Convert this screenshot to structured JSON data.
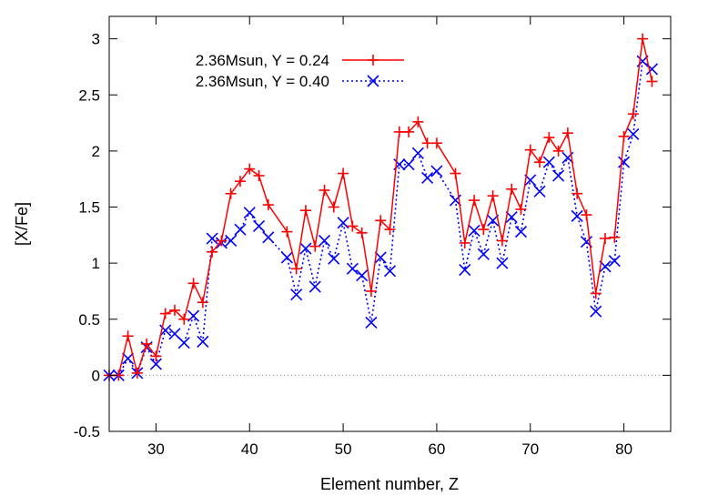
{
  "chart_data": {
    "type": "line",
    "title": "",
    "xlabel": "Element number, Z",
    "ylabel": "[X/Fe]",
    "xlim": [
      25,
      85
    ],
    "ylim": [
      -0.5,
      3.2
    ],
    "x_ticks": [
      30,
      40,
      50,
      60,
      70,
      80
    ],
    "y_ticks": [
      -0.5,
      0,
      0.5,
      1,
      1.5,
      2,
      2.5,
      3
    ],
    "x_tick_labels": [
      "30",
      "40",
      "50",
      "60",
      "70",
      "80"
    ],
    "y_tick_labels": [
      "-0.5",
      "0",
      "0.5",
      "1",
      "1.5",
      "2",
      "2.5",
      "3"
    ],
    "grid": false,
    "zero_line": true,
    "legend_position": "top-left",
    "x": [
      25,
      26,
      27,
      28,
      29,
      30,
      31,
      32,
      33,
      34,
      35,
      36,
      37,
      38,
      39,
      40,
      41,
      42,
      44,
      45,
      46,
      47,
      48,
      49,
      50,
      51,
      52,
      53,
      54,
      55,
      56,
      57,
      58,
      59,
      60,
      62,
      63,
      64,
      65,
      66,
      67,
      68,
      69,
      70,
      71,
      72,
      73,
      74,
      75,
      76,
      77,
      78,
      79,
      80,
      81,
      82,
      83
    ],
    "series": [
      {
        "name": "2.36Msun, Y = 0.24",
        "color": "#ff0000",
        "line_style": "solid",
        "marker": "plus",
        "values": [
          0.0,
          0.0,
          0.35,
          0.02,
          0.28,
          0.17,
          0.55,
          0.58,
          0.5,
          0.82,
          0.65,
          1.1,
          1.2,
          1.62,
          1.73,
          1.84,
          1.78,
          1.52,
          1.28,
          0.95,
          1.47,
          1.15,
          1.65,
          1.5,
          1.8,
          1.33,
          1.27,
          0.75,
          1.38,
          1.3,
          2.17,
          2.17,
          2.26,
          2.07,
          2.07,
          1.8,
          1.18,
          1.56,
          1.3,
          1.6,
          1.2,
          1.66,
          1.48,
          2.01,
          1.9,
          2.12,
          2.0,
          2.16,
          1.62,
          1.43,
          0.73,
          1.22,
          1.23,
          2.13,
          2.33,
          3.0,
          2.62
        ]
      },
      {
        "name": "2.36Msun, Y = 0.40",
        "color": "#0000ff",
        "line_style": "dotted",
        "marker": "cross",
        "values": [
          0.0,
          0.0,
          0.15,
          0.02,
          0.25,
          0.1,
          0.4,
          0.37,
          0.29,
          0.53,
          0.3,
          1.22,
          1.18,
          1.2,
          1.3,
          1.45,
          1.33,
          1.23,
          1.05,
          0.72,
          1.13,
          0.79,
          1.2,
          1.04,
          1.36,
          0.95,
          0.89,
          0.47,
          1.05,
          0.93,
          1.88,
          1.88,
          1.98,
          1.76,
          1.82,
          1.56,
          0.94,
          1.29,
          1.08,
          1.38,
          1.0,
          1.41,
          1.28,
          1.74,
          1.64,
          1.9,
          1.78,
          1.94,
          1.42,
          1.19,
          0.57,
          0.97,
          1.02,
          1.9,
          2.15,
          2.8,
          2.73
        ]
      }
    ]
  }
}
